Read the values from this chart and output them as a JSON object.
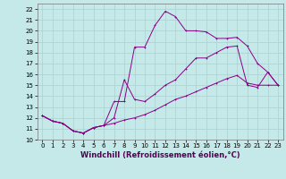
{
  "xlabel": "Windchill (Refroidissement éolien,°C)",
  "background_color": "#c5e8e8",
  "grid_color": "#aad0d0",
  "line_color": "#880088",
  "xlim": [
    -0.5,
    23.5
  ],
  "ylim": [
    10,
    22.5
  ],
  "xticks": [
    0,
    1,
    2,
    3,
    4,
    5,
    6,
    7,
    8,
    9,
    10,
    11,
    12,
    13,
    14,
    15,
    16,
    17,
    18,
    19,
    20,
    21,
    22,
    23
  ],
  "yticks": [
    10,
    11,
    12,
    13,
    14,
    15,
    16,
    17,
    18,
    19,
    20,
    21,
    22
  ],
  "line1_x": [
    0,
    1,
    2,
    3,
    4,
    5,
    6,
    7,
    8,
    9,
    10,
    11,
    12,
    13,
    14,
    15,
    16,
    17,
    18,
    19,
    20,
    21,
    22,
    23
  ],
  "line1_y": [
    12.2,
    11.7,
    11.5,
    10.8,
    10.6,
    11.1,
    11.3,
    13.5,
    13.5,
    18.5,
    18.5,
    20.5,
    21.8,
    21.3,
    20.0,
    20.0,
    19.9,
    19.3,
    19.3,
    19.4,
    18.6,
    17.0,
    16.2,
    15.0
  ],
  "line2_x": [
    0,
    1,
    2,
    3,
    4,
    5,
    6,
    7,
    8,
    9,
    10,
    11,
    12,
    13,
    14,
    15,
    16,
    17,
    18,
    19,
    20,
    21,
    22,
    23
  ],
  "line2_y": [
    12.2,
    11.7,
    11.5,
    10.8,
    10.6,
    11.1,
    11.3,
    12.0,
    15.5,
    13.7,
    13.5,
    14.2,
    15.0,
    15.5,
    16.5,
    17.5,
    17.5,
    18.0,
    18.5,
    18.6,
    15.0,
    14.8,
    16.2,
    15.0
  ],
  "line3_x": [
    0,
    1,
    2,
    3,
    4,
    5,
    6,
    7,
    8,
    9,
    10,
    11,
    12,
    13,
    14,
    15,
    16,
    17,
    18,
    19,
    20,
    21,
    22,
    23
  ],
  "line3_y": [
    12.2,
    11.7,
    11.5,
    10.8,
    10.6,
    11.1,
    11.3,
    11.5,
    11.8,
    12.0,
    12.3,
    12.7,
    13.2,
    13.7,
    14.0,
    14.4,
    14.8,
    15.2,
    15.6,
    15.9,
    15.2,
    15.0,
    15.0,
    15.0
  ],
  "xlabel_color": "#550055",
  "xlabel_fontsize": 6,
  "tick_fontsize": 5,
  "lw": 0.7,
  "ms": 2.0
}
